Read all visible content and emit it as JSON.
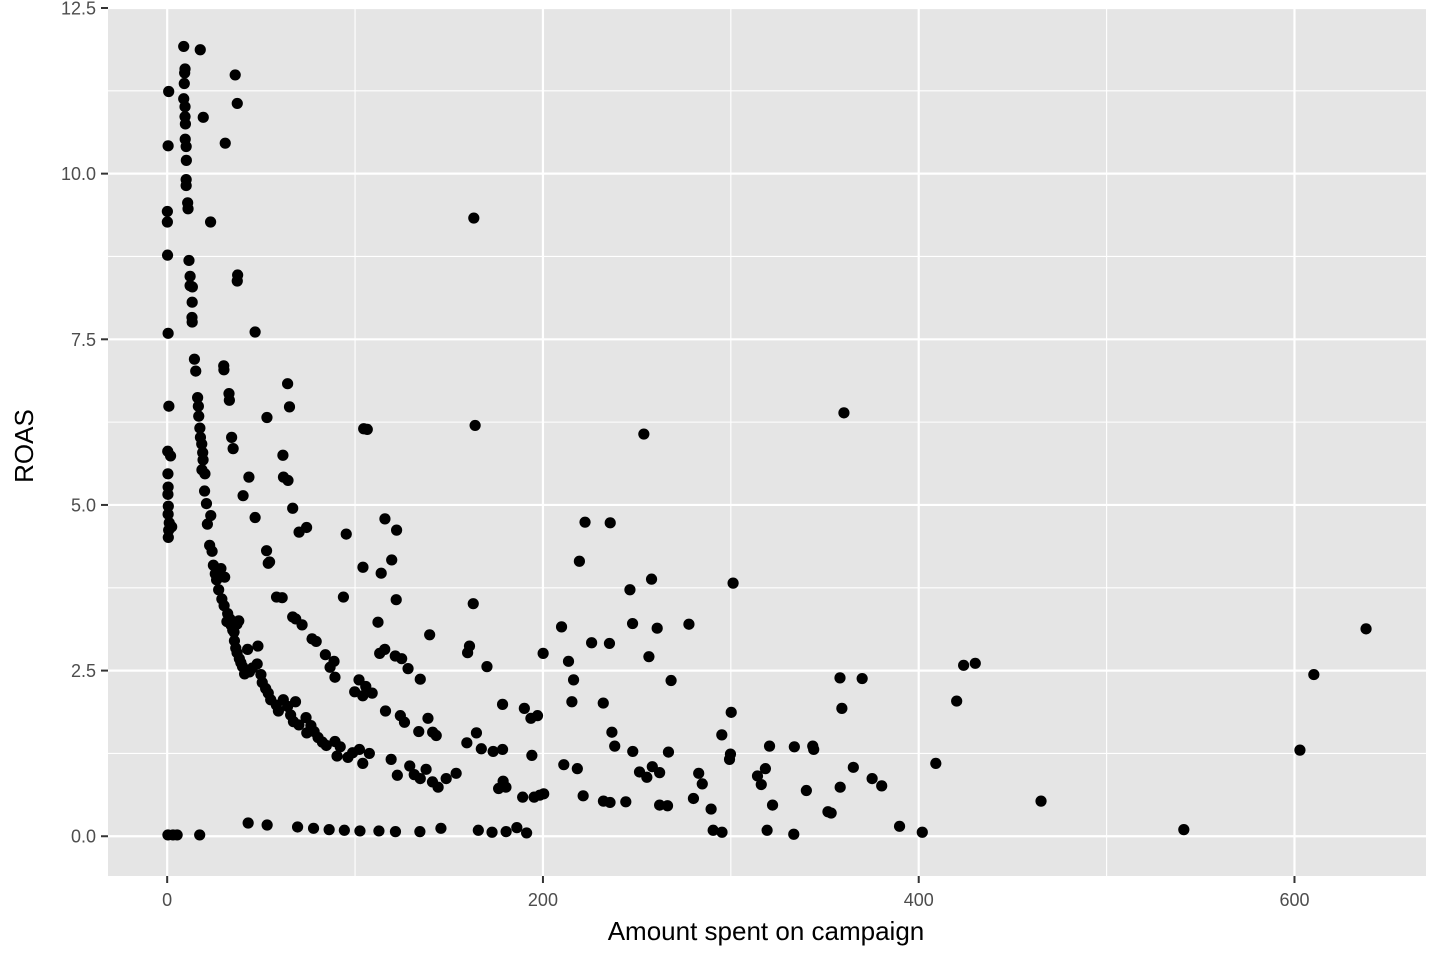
{
  "chart_data": {
    "type": "scatter",
    "title": "",
    "xlabel": "Amount spent on campaign",
    "ylabel": "ROAS",
    "xlim": [
      -31.5,
      670
    ],
    "ylim": [
      -0.6,
      12.5
    ],
    "x_ticks": [
      0,
      200,
      400,
      600
    ],
    "x_tick_labels": [
      "0",
      "200",
      "400",
      "600"
    ],
    "x_minor_ticks": [
      100,
      300,
      500
    ],
    "y_ticks": [
      0,
      2.5,
      5,
      7.5,
      10,
      12.5
    ],
    "y_tick_labels": [
      "0.0",
      "2.5",
      "5.0",
      "7.5",
      "10.0",
      "12.5"
    ],
    "y_minor_ticks": [
      1.25,
      3.75,
      6.25,
      8.75,
      11.25
    ],
    "grid": true,
    "legend": "none",
    "colors": {
      "panel": "#e5e5e5",
      "grid": "#ffffff",
      "point": "#000000",
      "tick_text": "#4d4d4d",
      "tick_mark": "#333333"
    },
    "points": [
      [
        8.8,
        11.92
      ],
      [
        17.6,
        11.87
      ],
      [
        36.2,
        11.49
      ],
      [
        37.3,
        11.06
      ],
      [
        0.8,
        11.24
      ],
      [
        9.5,
        11.58
      ],
      [
        9.3,
        11.52
      ],
      [
        9.1,
        11.36
      ],
      [
        8.8,
        11.13
      ],
      [
        9.5,
        11.01
      ],
      [
        9.5,
        10.86
      ],
      [
        9.7,
        10.75
      ],
      [
        9.6,
        10.52
      ],
      [
        10.1,
        10.41
      ],
      [
        19.2,
        10.85
      ],
      [
        30.9,
        10.46
      ],
      [
        0.5,
        10.42
      ],
      [
        10.2,
        10.2
      ],
      [
        10.1,
        9.91
      ],
      [
        10.1,
        9.82
      ],
      [
        10.9,
        9.56
      ],
      [
        11.1,
        9.47
      ],
      [
        23.1,
        9.27
      ],
      [
        0.1,
        9.43
      ],
      [
        0.1,
        9.27
      ],
      [
        163.2,
        9.33
      ],
      [
        0.2,
        8.77
      ],
      [
        11.6,
        8.69
      ],
      [
        12.2,
        8.45
      ],
      [
        12.2,
        8.31
      ],
      [
        13.4,
        8.29
      ],
      [
        13.3,
        8.06
      ],
      [
        13.2,
        7.83
      ],
      [
        13.3,
        7.76
      ],
      [
        37.5,
        8.47
      ],
      [
        37.3,
        8.38
      ],
      [
        46.8,
        7.61
      ],
      [
        0.5,
        7.59
      ],
      [
        14.5,
        7.2
      ],
      [
        15.2,
        7.02
      ],
      [
        30.1,
        7.1
      ],
      [
        30.2,
        7.04
      ],
      [
        64.1,
        6.83
      ],
      [
        16.2,
        6.62
      ],
      [
        32.9,
        6.68
      ],
      [
        33.1,
        6.58
      ],
      [
        65.1,
        6.48
      ],
      [
        16.6,
        6.49
      ],
      [
        0.9,
        6.49
      ],
      [
        16.8,
        6.34
      ],
      [
        17.4,
        6.16
      ],
      [
        53.1,
        6.32
      ],
      [
        104.6,
        6.15
      ],
      [
        106.5,
        6.14
      ],
      [
        163.9,
        6.2
      ],
      [
        360.2,
        6.39
      ],
      [
        253.7,
        6.07
      ],
      [
        17.7,
        6.02
      ],
      [
        34.3,
        6.02
      ],
      [
        35.1,
        5.85
      ],
      [
        18.4,
        5.92
      ],
      [
        18.9,
        5.79
      ],
      [
        19.1,
        5.68
      ],
      [
        20.1,
        5.47
      ],
      [
        18.5,
        5.53
      ],
      [
        61.6,
        5.75
      ],
      [
        61.9,
        5.42
      ],
      [
        64.3,
        5.37
      ],
      [
        43.5,
        5.42
      ],
      [
        40.4,
        5.14
      ],
      [
        0.3,
        5.81
      ],
      [
        1.8,
        5.74
      ],
      [
        0.4,
        5.47
      ],
      [
        0.5,
        5.27
      ],
      [
        0.4,
        5.16
      ],
      [
        0.6,
        4.98
      ],
      [
        0.5,
        4.86
      ],
      [
        1.1,
        4.73
      ],
      [
        0.8,
        4.62
      ],
      [
        0.6,
        4.51
      ],
      [
        2.4,
        4.67
      ],
      [
        19.9,
        5.21
      ],
      [
        20.9,
        5.02
      ],
      [
        21.4,
        4.71
      ],
      [
        23.2,
        4.84
      ],
      [
        46.8,
        4.81
      ],
      [
        66.8,
        4.95
      ],
      [
        70.2,
        4.59
      ],
      [
        74.2,
        4.66
      ],
      [
        95.3,
        4.56
      ],
      [
        115.9,
        4.79
      ],
      [
        122.1,
        4.62
      ],
      [
        104.2,
        4.06
      ],
      [
        113.9,
        3.97
      ],
      [
        119.5,
        4.17
      ],
      [
        222.4,
        4.74
      ],
      [
        235.8,
        4.73
      ],
      [
        219.4,
        4.15
      ],
      [
        52.9,
        4.31
      ],
      [
        53.8,
        4.12
      ],
      [
        54.5,
        4.14
      ],
      [
        22.6,
        4.39
      ],
      [
        23.9,
        4.3
      ],
      [
        24.6,
        4.09
      ],
      [
        25.6,
        3.96
      ],
      [
        26.3,
        3.87
      ],
      [
        28.6,
        4.04
      ],
      [
        30.6,
        3.91
      ],
      [
        27.4,
        3.72
      ],
      [
        29.1,
        3.58
      ],
      [
        30.3,
        3.48
      ],
      [
        32.2,
        3.36
      ],
      [
        33.4,
        3.28
      ],
      [
        33.9,
        3.19
      ],
      [
        34.9,
        3.11
      ],
      [
        31.8,
        3.24
      ],
      [
        35.6,
        3.08
      ],
      [
        37.1,
        3.2
      ],
      [
        38.1,
        3.25
      ],
      [
        35.8,
        2.95
      ],
      [
        36.5,
        2.84
      ],
      [
        37.2,
        2.77
      ],
      [
        38.4,
        2.68
      ],
      [
        39.2,
        2.62
      ],
      [
        40.1,
        2.56
      ],
      [
        42.8,
        2.82
      ],
      [
        41.2,
        2.45
      ],
      [
        43.8,
        2.48
      ],
      [
        45.4,
        2.54
      ],
      [
        47.9,
        2.6
      ],
      [
        48.3,
        2.87
      ],
      [
        49.9,
        2.44
      ],
      [
        50.6,
        2.32
      ],
      [
        52.4,
        2.23
      ],
      [
        53.8,
        2.16
      ],
      [
        55.1,
        2.06
      ],
      [
        58.1,
        1.98
      ],
      [
        59.2,
        1.89
      ],
      [
        58.2,
        3.61
      ],
      [
        61.2,
        3.6
      ],
      [
        66.8,
        3.31
      ],
      [
        68.4,
        3.28
      ],
      [
        71.8,
        3.19
      ],
      [
        77.1,
        2.98
      ],
      [
        79.3,
        2.94
      ],
      [
        84.2,
        2.74
      ],
      [
        88.8,
        2.64
      ],
      [
        86.7,
        2.55
      ],
      [
        89.3,
        2.4
      ],
      [
        93.8,
        3.61
      ],
      [
        102.1,
        2.36
      ],
      [
        105.7,
        2.26
      ],
      [
        99.8,
        2.18
      ],
      [
        104.1,
        2.12
      ],
      [
        109.1,
        2.16
      ],
      [
        112.2,
        3.23
      ],
      [
        113.1,
        2.76
      ],
      [
        115.8,
        2.82
      ],
      [
        121.4,
        2.72
      ],
      [
        124.8,
        2.68
      ],
      [
        121.9,
        3.57
      ],
      [
        139.7,
        3.04
      ],
      [
        160.9,
        2.87
      ],
      [
        159.9,
        2.77
      ],
      [
        162.9,
        3.51
      ],
      [
        170.2,
        2.56
      ],
      [
        200.1,
        2.76
      ],
      [
        209.9,
        3.16
      ],
      [
        213.6,
        2.64
      ],
      [
        216.3,
        2.36
      ],
      [
        215.4,
        2.03
      ],
      [
        225.9,
        2.92
      ],
      [
        235.4,
        2.91
      ],
      [
        246.3,
        3.72
      ],
      [
        247.7,
        3.21
      ],
      [
        257.8,
        3.88
      ],
      [
        260.8,
        3.14
      ],
      [
        277.7,
        3.2
      ],
      [
        301.2,
        3.82
      ],
      [
        268.2,
        2.35
      ],
      [
        256.4,
        2.71
      ],
      [
        232.1,
        2.01
      ],
      [
        236.7,
        1.57
      ],
      [
        128.2,
        2.53
      ],
      [
        134.7,
        2.37
      ],
      [
        116.2,
        1.89
      ],
      [
        124.1,
        1.82
      ],
      [
        126.3,
        1.72
      ],
      [
        133.9,
        1.58
      ],
      [
        138.8,
        1.78
      ],
      [
        141.3,
        1.57
      ],
      [
        143.2,
        1.52
      ],
      [
        178.5,
        1.99
      ],
      [
        190.1,
        1.93
      ],
      [
        193.6,
        1.78
      ],
      [
        197.1,
        1.82
      ],
      [
        61.8,
        2.06
      ],
      [
        64.1,
        1.96
      ],
      [
        68.3,
        2.03
      ],
      [
        65.7,
        1.83
      ],
      [
        67.2,
        1.73
      ],
      [
        70.1,
        1.68
      ],
      [
        73.9,
        1.79
      ],
      [
        74.3,
        1.56
      ],
      [
        76.5,
        1.67
      ],
      [
        78.2,
        1.58
      ],
      [
        80.3,
        1.49
      ],
      [
        82.6,
        1.42
      ],
      [
        84.7,
        1.37
      ],
      [
        89.3,
        1.43
      ],
      [
        92.1,
        1.35
      ],
      [
        90.4,
        1.21
      ],
      [
        96.2,
        1.19
      ],
      [
        98.7,
        1.26
      ],
      [
        102.3,
        1.31
      ],
      [
        107.6,
        1.25
      ],
      [
        104.1,
        1.1
      ],
      [
        119.2,
        1.16
      ],
      [
        122.5,
        0.92
      ],
      [
        129.1,
        1.06
      ],
      [
        131.5,
        0.93
      ],
      [
        134.7,
        0.87
      ],
      [
        137.8,
        1.01
      ],
      [
        141.2,
        0.82
      ],
      [
        144.2,
        0.74
      ],
      [
        148.5,
        0.87
      ],
      [
        153.8,
        0.95
      ],
      [
        159.5,
        1.41
      ],
      [
        164.6,
        1.56
      ],
      [
        167.2,
        1.32
      ],
      [
        173.5,
        1.28
      ],
      [
        178.5,
        1.31
      ],
      [
        178.8,
        0.83
      ],
      [
        176.4,
        0.72
      ],
      [
        180.3,
        0.74
      ],
      [
        189.2,
        0.59
      ],
      [
        194.1,
        1.22
      ],
      [
        195.3,
        0.59
      ],
      [
        198.3,
        0.62
      ],
      [
        200.4,
        0.64
      ],
      [
        211.1,
        1.08
      ],
      [
        218.3,
        1.02
      ],
      [
        221.4,
        0.61
      ],
      [
        232.2,
        0.53
      ],
      [
        235.7,
        0.51
      ],
      [
        238.2,
        1.36
      ],
      [
        244.1,
        0.52
      ],
      [
        247.8,
        1.28
      ],
      [
        251.4,
        0.97
      ],
      [
        255.3,
        0.89
      ],
      [
        258.2,
        1.05
      ],
      [
        262.1,
        0.96
      ],
      [
        262.1,
        0.47
      ],
      [
        266.3,
        0.46
      ],
      [
        266.8,
        1.27
      ],
      [
        280.1,
        0.57
      ],
      [
        282.9,
        0.95
      ],
      [
        284.8,
        0.79
      ],
      [
        289.5,
        0.41
      ],
      [
        290.6,
        0.09
      ],
      [
        295.2,
        1.53
      ],
      [
        295.3,
        0.06
      ],
      [
        300.2,
        1.87
      ],
      [
        299.3,
        1.16
      ],
      [
        299.8,
        1.24
      ],
      [
        314.2,
        0.91
      ],
      [
        316.2,
        0.78
      ],
      [
        318.4,
        1.02
      ],
      [
        320.6,
        1.36
      ],
      [
        322.2,
        0.47
      ],
      [
        319.3,
        0.09
      ],
      [
        333.5,
        0.03
      ],
      [
        333.8,
        1.35
      ],
      [
        343.6,
        1.36
      ],
      [
        344.1,
        1.31
      ],
      [
        340.2,
        0.69
      ],
      [
        351.7,
        0.37
      ],
      [
        353.4,
        0.35
      ],
      [
        358.2,
        0.74
      ],
      [
        359.1,
        1.93
      ],
      [
        358.1,
        2.39
      ],
      [
        365.2,
        1.04
      ],
      [
        369.9,
        2.38
      ],
      [
        375.2,
        0.87
      ],
      [
        380.3,
        0.76
      ],
      [
        389.8,
        0.15
      ],
      [
        409.1,
        1.1
      ],
      [
        401.9,
        0.06
      ],
      [
        420.2,
        2.04
      ],
      [
        423.9,
        2.58
      ],
      [
        430.1,
        2.61
      ],
      [
        465.1,
        0.53
      ],
      [
        541.1,
        0.1
      ],
      [
        602.9,
        1.3
      ],
      [
        610.3,
        2.44
      ],
      [
        638.1,
        3.13
      ],
      [
        43.1,
        0.2
      ],
      [
        53.2,
        0.17
      ],
      [
        69.4,
        0.14
      ],
      [
        77.9,
        0.12
      ],
      [
        86.2,
        0.1
      ],
      [
        94.3,
        0.09
      ],
      [
        102.6,
        0.08
      ],
      [
        112.7,
        0.08
      ],
      [
        121.5,
        0.07
      ],
      [
        134.5,
        0.07
      ],
      [
        145.7,
        0.12
      ],
      [
        165.6,
        0.09
      ],
      [
        172.9,
        0.06
      ],
      [
        180.4,
        0.07
      ],
      [
        186.1,
        0.13
      ],
      [
        191.3,
        0.05
      ],
      [
        17.3,
        0.02
      ],
      [
        3.1,
        0.02
      ],
      [
        5.3,
        0.02
      ],
      [
        0.4,
        0.02
      ]
    ]
  }
}
